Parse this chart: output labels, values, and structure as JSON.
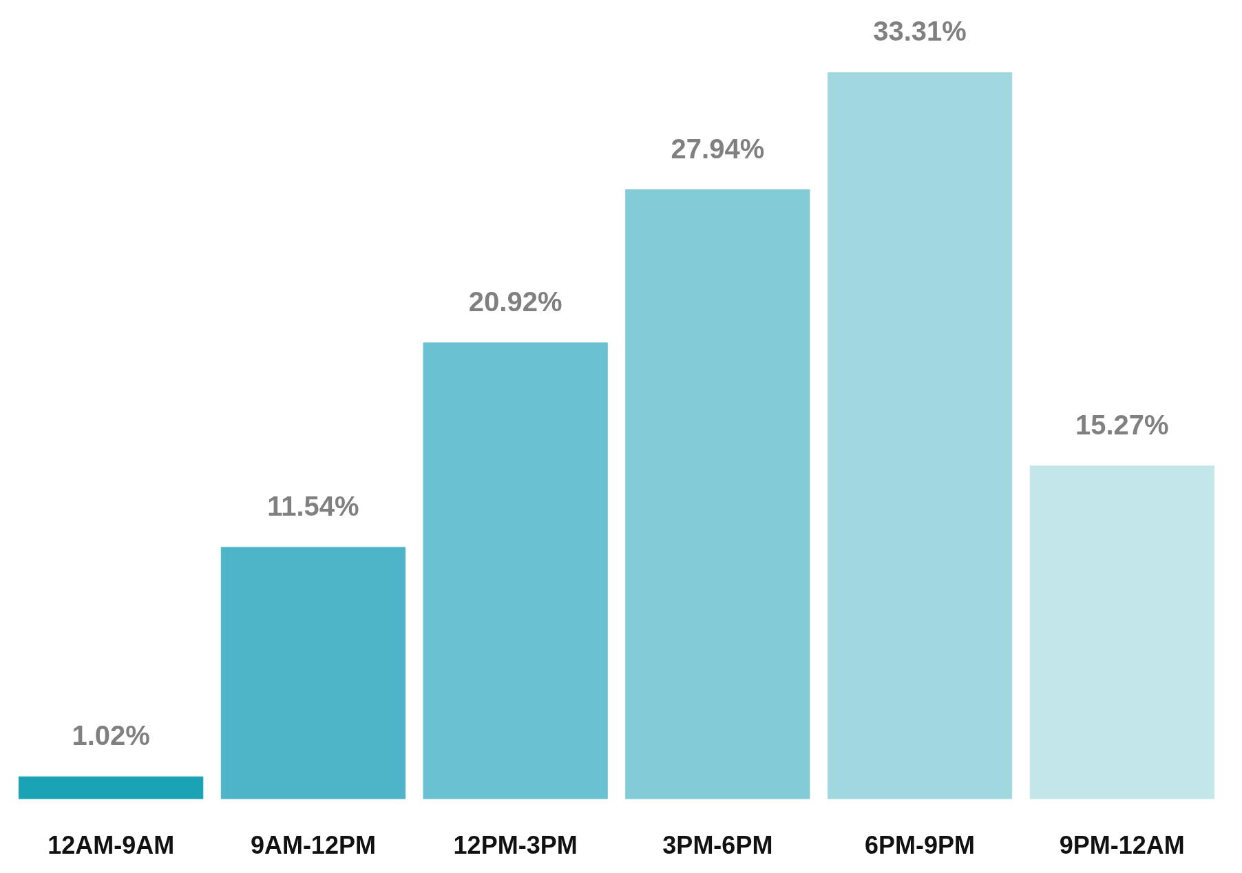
{
  "chart_data": {
    "type": "bar",
    "categories": [
      "12AM-9AM",
      "9AM-12PM",
      "12PM-3PM",
      "3PM-6PM",
      "6PM-9PM",
      "9PM-12AM"
    ],
    "values": [
      1.02,
      11.54,
      20.92,
      27.94,
      33.31,
      15.27
    ],
    "colors": [
      "#19a3b5",
      "#4db5c7",
      "#6ac1d1",
      "#83cbd6",
      "#a1d8e0",
      "#c3e6ea"
    ],
    "value_labels": [
      "1.02%",
      "11.54%",
      "20.92%",
      "27.94%",
      "33.31%",
      "15.27%"
    ],
    "grid": false
  }
}
